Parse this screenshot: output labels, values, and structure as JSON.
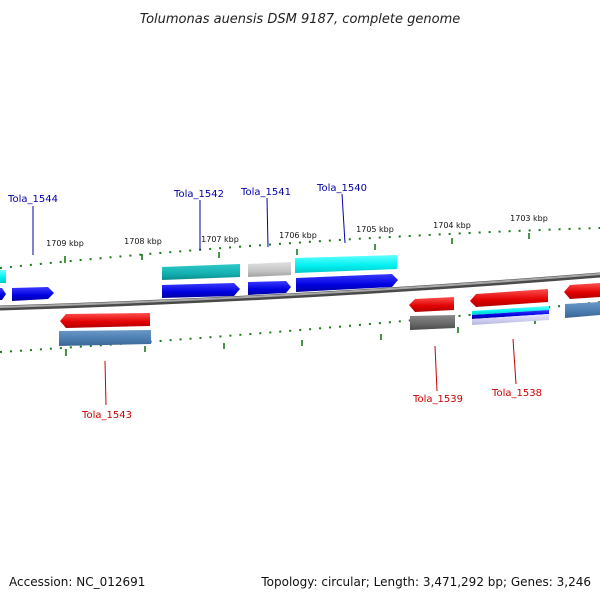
{
  "title": "Tolumonas auensis DSM 9187, complete genome",
  "footer": {
    "accession": "Accession: NC_012691",
    "topology": "Topology: circular; Length: 3,471,292 bp; Genes: 3,246"
  },
  "scale_labels": [
    "1709 kbp",
    "1708 kbp",
    "1707 kbp",
    "1706 kbp",
    "1705 kbp",
    "1704 kbp",
    "1703 kbp"
  ],
  "genes": {
    "forward": [
      "Tola_1544",
      "Tola_1542",
      "Tola_1541",
      "Tola_1540"
    ],
    "reverse": [
      "Tola_1543",
      "Tola_1539",
      "Tola_1538"
    ]
  },
  "colors": {
    "forward_label": "#0000aa",
    "reverse_label": "#cc0000",
    "tick": "#1a7a1a",
    "backbone": "#808080"
  }
}
